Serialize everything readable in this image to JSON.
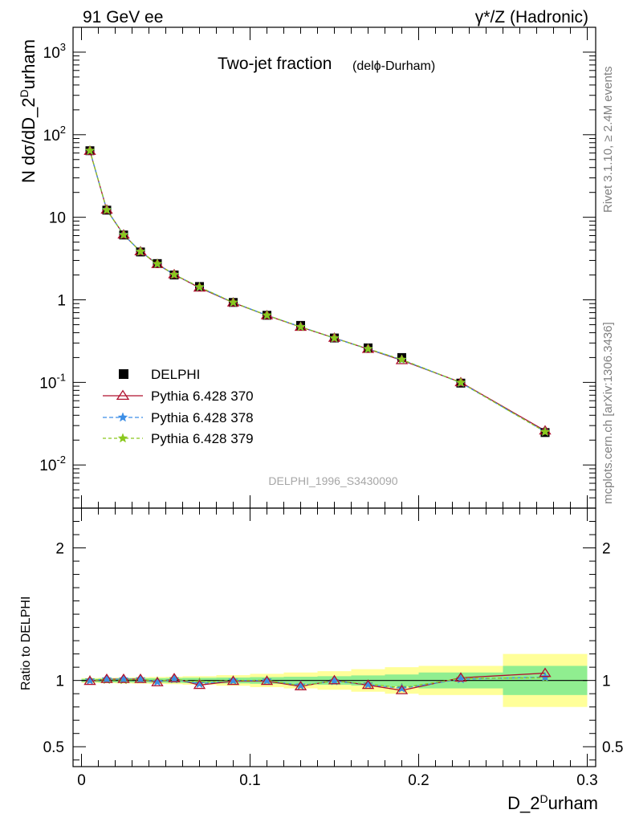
{
  "header": {
    "left": "91 GeV ee",
    "right": "γ*/Z (Hadronic)"
  },
  "side_text": {
    "rivet": "Rivet 3.1.10, ≥ 2.4M events",
    "mcplots": "mcplots.cern.ch [arXiv:1306.3436]"
  },
  "analysis_id": "DELPHI_1996_S3430090",
  "chart_data": [
    {
      "type": "line",
      "title": "Two-jet fraction",
      "subtitle": "(delϕ-Durham)",
      "ylabel": "N dσ/dD_2^Durham",
      "yscale": "log",
      "ylim": [
        0.003,
        2000
      ],
      "xlim": [
        -0.005,
        0.305
      ],
      "ytick_labels": [
        "10^-2",
        "10^-1",
        "1",
        "10",
        "10^2",
        "10^3"
      ],
      "legend_position": "center-left",
      "x": [
        0.005,
        0.015,
        0.025,
        0.035,
        0.045,
        0.055,
        0.07,
        0.09,
        0.11,
        0.13,
        0.15,
        0.17,
        0.19,
        0.225,
        0.275
      ],
      "series": [
        {
          "name": "DELPHI",
          "marker": "square",
          "color": "#000000",
          "values": [
            64,
            12.2,
            6.1,
            3.8,
            2.75,
            2.0,
            1.45,
            0.93,
            0.65,
            0.49,
            0.345,
            0.262,
            0.2,
            0.098,
            0.0247
          ]
        },
        {
          "name": "Pythia 6.428 370",
          "marker": "triangle",
          "color": "#b0102e",
          "values": [
            63.5,
            12.3,
            6.15,
            3.85,
            2.7,
            2.03,
            1.4,
            0.925,
            0.648,
            0.468,
            0.345,
            0.253,
            0.185,
            0.1,
            0.026
          ]
        },
        {
          "name": "Pythia 6.428 378",
          "marker": "star",
          "color": "#3c8ee6",
          "values": [
            64,
            12.3,
            6.15,
            3.85,
            2.72,
            2.02,
            1.42,
            0.93,
            0.65,
            0.472,
            0.343,
            0.254,
            0.188,
            0.099,
            0.0253
          ]
        },
        {
          "name": "Pythia 6.428 379",
          "marker": "star",
          "color": "#8ac81e",
          "values": [
            64.2,
            12.25,
            6.12,
            3.84,
            2.73,
            2.02,
            1.43,
            0.93,
            0.651,
            0.47,
            0.344,
            0.255,
            0.189,
            0.0995,
            0.0252
          ]
        }
      ]
    },
    {
      "type": "line",
      "ylabel": "Ratio to DELPHI",
      "xlabel": "D_2^Durham",
      "ylim": [
        0.35,
        2.3
      ],
      "xlim": [
        -0.005,
        0.305
      ],
      "yticks": [
        0.5,
        1,
        2
      ],
      "xticks": [
        0,
        0.1,
        0.2,
        0.3
      ],
      "x": [
        0.005,
        0.015,
        0.025,
        0.035,
        0.045,
        0.055,
        0.07,
        0.09,
        0.11,
        0.13,
        0.15,
        0.17,
        0.19,
        0.225,
        0.275
      ],
      "bin_edges": [
        0,
        0.01,
        0.02,
        0.03,
        0.04,
        0.05,
        0.06,
        0.08,
        0.1,
        0.12,
        0.14,
        0.16,
        0.18,
        0.2,
        0.25,
        0.3
      ],
      "band_inner": [
        0.012,
        0.014,
        0.015,
        0.016,
        0.017,
        0.018,
        0.02,
        0.022,
        0.025,
        0.028,
        0.032,
        0.038,
        0.045,
        0.06,
        0.11
      ],
      "band_outer": [
        0.018,
        0.02,
        0.022,
        0.024,
        0.026,
        0.028,
        0.032,
        0.04,
        0.05,
        0.06,
        0.07,
        0.085,
        0.1,
        0.11,
        0.2
      ],
      "band_inner_color": "#90ee90",
      "band_outer_color": "#ffff99",
      "series": [
        {
          "name": "Pythia 6.428 370",
          "color": "#b0102e",
          "values": [
            0.995,
            1.01,
            1.01,
            1.01,
            0.985,
            1.015,
            0.965,
            0.995,
            0.995,
            0.955,
            1.0,
            0.965,
            0.925,
            1.02,
            1.055
          ]
        },
        {
          "name": "Pythia 6.428 378",
          "color": "#3c8ee6",
          "values": [
            1.0,
            1.01,
            1.01,
            1.01,
            0.99,
            1.01,
            0.975,
            1.0,
            1.0,
            0.963,
            0.995,
            0.97,
            0.94,
            1.01,
            1.025
          ]
        },
        {
          "name": "Pythia 6.428 379",
          "color": "#8ac81e",
          "values": [
            1.003,
            1.005,
            1.003,
            1.01,
            0.993,
            1.01,
            0.986,
            1.0,
            1.002,
            0.96,
            0.997,
            0.973,
            0.945,
            1.015,
            1.02
          ]
        }
      ]
    }
  ]
}
